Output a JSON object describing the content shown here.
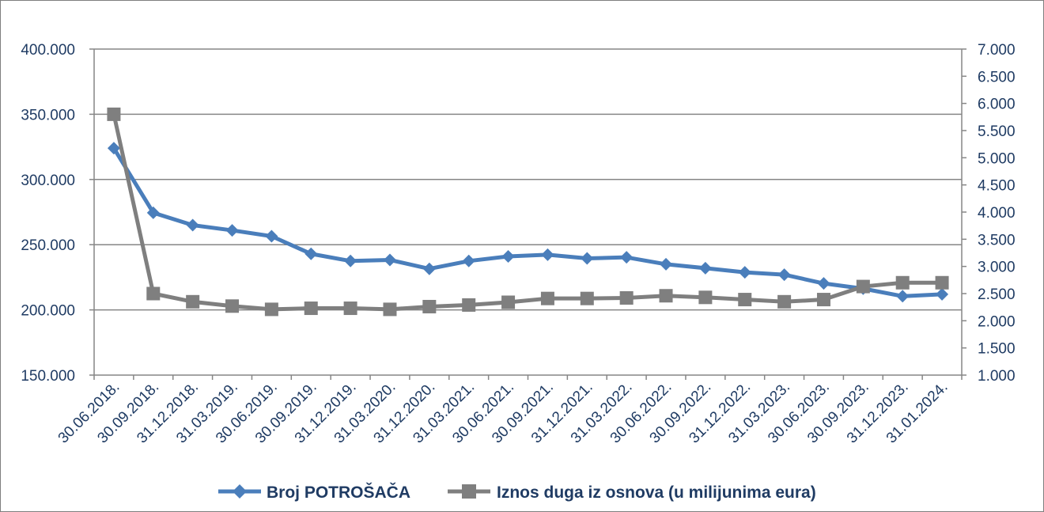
{
  "chart_data": {
    "type": "line",
    "title": "",
    "xlabel": "",
    "ylabel": "",
    "categories": [
      "30.06.2018.",
      "30.09.2018.",
      "31.12.2018.",
      "31.03.2019.",
      "30.06.2019.",
      "30.09.2019.",
      "31.12.2019.",
      "31.03.2020.",
      "31.12.2020.",
      "31.03.2021.",
      "30.06.2021.",
      "30.09.2021.",
      "31.12.2021.",
      "31.03.2022.",
      "30.06.2022.",
      "30.09.2022.",
      "31.12.2022.",
      "31.03.2023.",
      "30.06.2023.",
      "30.09.2023.",
      "31.12.2023.",
      "31.01.2024."
    ],
    "y_left": {
      "min": 150000,
      "max": 400000,
      "ticks": [
        "150.000",
        "200.000",
        "250.000",
        "300.000",
        "350.000",
        "400.000"
      ]
    },
    "y_right": {
      "min": 1000,
      "max": 7000,
      "ticks": [
        "1.000",
        "1.500",
        "2.000",
        "2.500",
        "3.000",
        "3.500",
        "4.000",
        "4.500",
        "5.000",
        "5.500",
        "6.000",
        "6.500",
        "7.000"
      ]
    },
    "grid": "horizontal major (left axis)",
    "legend_position": "bottom",
    "series": [
      {
        "name": "Broj POTROŠAČA",
        "axis": "left",
        "color": "#4a7ebb",
        "marker": "diamond",
        "values": [
          324000,
          274500,
          265000,
          261000,
          256500,
          243000,
          237500,
          238300,
          231500,
          237500,
          241000,
          242300,
          239500,
          240300,
          235000,
          232000,
          228800,
          227000,
          220300,
          216300,
          210500,
          212000
        ]
      },
      {
        "name": "Iznos duga iz osnova (u milijunima eura)",
        "axis": "right",
        "color": "#7f7f7f",
        "marker": "square",
        "values": [
          5800,
          2500,
          2350,
          2270,
          2210,
          2230,
          2230,
          2210,
          2260,
          2290,
          2340,
          2410,
          2410,
          2420,
          2460,
          2430,
          2390,
          2350,
          2390,
          2630,
          2700,
          2700
        ]
      }
    ]
  }
}
